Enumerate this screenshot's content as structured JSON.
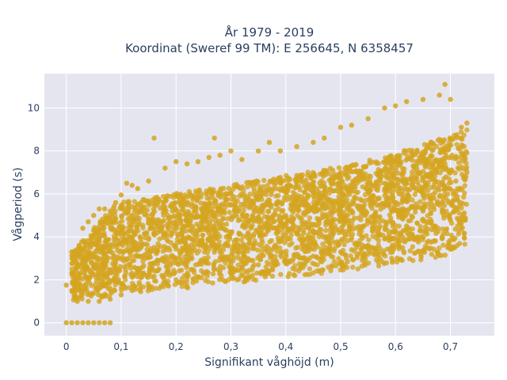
{
  "chart_data": {
    "type": "scatter",
    "title_line1": "År 1979 - 2019",
    "title_line2": "Koordinat (Sweref 99 TM): E 256645, N 6358457",
    "xlabel": "Signifikant våghöjd (m)",
    "ylabel": "Vågperiod (s)",
    "xlim": [
      -0.04,
      0.78
    ],
    "ylim": [
      -0.6,
      11.6
    ],
    "x_ticks": [
      0,
      0.1,
      0.2,
      0.3,
      0.4,
      0.5,
      0.6,
      0.7
    ],
    "x_tick_labels": [
      "0",
      "0,1",
      "0,2",
      "0,3",
      "0,4",
      "0,5",
      "0,6",
      "0,7"
    ],
    "y_ticks": [
      0,
      2,
      4,
      6,
      8,
      10
    ],
    "y_tick_labels": [
      "0",
      "2",
      "4",
      "6",
      "8",
      "10"
    ],
    "grid": true,
    "marker_color": "#d4a520",
    "background_color": "#e5e5f0",
    "series": [
      {
        "points": [
          [
            0.0,
            0.0
          ],
          [
            0.01,
            0.0
          ],
          [
            0.02,
            0.0
          ],
          [
            0.03,
            0.0
          ],
          [
            0.04,
            0.0
          ],
          [
            0.05,
            0.0
          ],
          [
            0.06,
            0.0
          ],
          [
            0.07,
            0.0
          ],
          [
            0.08,
            0.0
          ],
          [
            0.0,
            1.75
          ],
          [
            0.01,
            1.5
          ],
          [
            0.01,
            3.3
          ],
          [
            0.02,
            1.6
          ],
          [
            0.02,
            3.2
          ],
          [
            0.03,
            4.4
          ],
          [
            0.04,
            4.7
          ],
          [
            0.05,
            5.0
          ],
          [
            0.06,
            5.3
          ],
          [
            0.07,
            5.3
          ],
          [
            0.08,
            5.2
          ],
          [
            0.09,
            5.6
          ],
          [
            0.1,
            5.95
          ],
          [
            0.11,
            6.5
          ],
          [
            0.12,
            6.4
          ],
          [
            0.13,
            6.25
          ],
          [
            0.15,
            6.6
          ],
          [
            0.16,
            8.6
          ],
          [
            0.18,
            7.2
          ],
          [
            0.2,
            7.5
          ],
          [
            0.22,
            7.4
          ],
          [
            0.24,
            7.5
          ],
          [
            0.26,
            7.7
          ],
          [
            0.27,
            8.6
          ],
          [
            0.28,
            7.8
          ],
          [
            0.3,
            8.0
          ],
          [
            0.32,
            7.6
          ],
          [
            0.35,
            8.0
          ],
          [
            0.37,
            8.4
          ],
          [
            0.39,
            8.0
          ],
          [
            0.42,
            8.2
          ],
          [
            0.45,
            8.4
          ],
          [
            0.47,
            8.6
          ],
          [
            0.5,
            9.1
          ],
          [
            0.52,
            9.2
          ],
          [
            0.55,
            9.5
          ],
          [
            0.58,
            10.0
          ],
          [
            0.6,
            10.1
          ],
          [
            0.62,
            10.3
          ],
          [
            0.65,
            10.4
          ],
          [
            0.68,
            10.6
          ],
          [
            0.69,
            11.1
          ],
          [
            0.7,
            10.4
          ],
          [
            0.72,
            9.1
          ],
          [
            0.73,
            9.3
          ],
          [
            0.02,
            1.0
          ],
          [
            0.04,
            1.0
          ],
          [
            0.06,
            1.0
          ],
          [
            0.08,
            1.1
          ],
          [
            0.1,
            1.3
          ],
          [
            0.12,
            1.5
          ],
          [
            0.15,
            1.7
          ],
          [
            0.18,
            1.9
          ],
          [
            0.2,
            2.0
          ],
          [
            0.22,
            2.2
          ],
          [
            0.25,
            2.3
          ],
          [
            0.28,
            2.4
          ],
          [
            0.3,
            2.5
          ],
          [
            0.32,
            2.6
          ],
          [
            0.35,
            2.7
          ],
          [
            0.38,
            2.8
          ],
          [
            0.4,
            2.9
          ],
          [
            0.43,
            3.0
          ],
          [
            0.45,
            3.1
          ],
          [
            0.48,
            3.2
          ],
          [
            0.5,
            3.3
          ],
          [
            0.52,
            3.4
          ],
          [
            0.55,
            3.6
          ],
          [
            0.58,
            3.9
          ],
          [
            0.6,
            4.2
          ],
          [
            0.62,
            4.5
          ],
          [
            0.65,
            5.2
          ],
          [
            0.67,
            5.8
          ],
          [
            0.69,
            6.2
          ],
          [
            0.71,
            6.6
          ],
          [
            0.73,
            7.0
          ]
        ]
      }
    ]
  }
}
